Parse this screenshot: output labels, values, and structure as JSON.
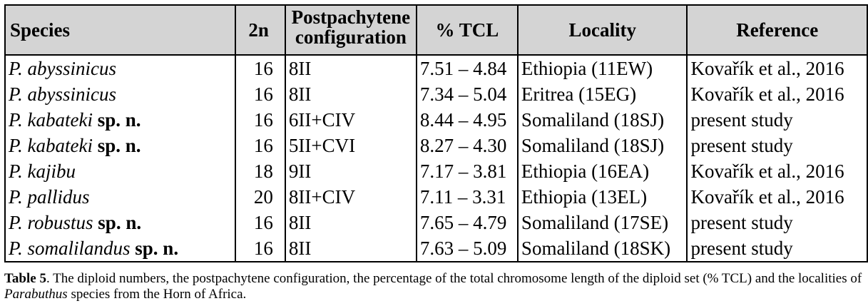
{
  "table": {
    "headers": {
      "species": "Species",
      "two_n": "2n",
      "config_line1": "Postpachytene",
      "config_line2": "configuration",
      "tcl": "% TCL",
      "locality": "Locality",
      "reference": "Reference"
    },
    "rows": [
      {
        "species": "P. abyssinicus",
        "tag": "",
        "two_n": "16",
        "config": "8II",
        "tcl": "7.51 – 4.84",
        "locality": "Ethiopia (11EW)",
        "reference": "Kovařík et al., 2016"
      },
      {
        "species": "P. abyssinicus",
        "tag": "",
        "two_n": "16",
        "config": "8II",
        "tcl": "7.34 – 5.04",
        "locality": "Eritrea (15EG)",
        "reference": "Kovařík et al., 2016"
      },
      {
        "species": "P. kabateki",
        "tag": "sp. n.",
        "two_n": "16",
        "config": "6II+CIV",
        "tcl": "8.44 – 4.95",
        "locality": "Somaliland (18SJ)",
        "reference": "present study"
      },
      {
        "species": "P. kabateki",
        "tag": "sp. n.",
        "two_n": "16",
        "config": "5II+CVI",
        "tcl": "8.27 – 4.30",
        "locality": "Somaliland (18SJ)",
        "reference": "present study"
      },
      {
        "species": "P. kajibu",
        "tag": "",
        "two_n": "18",
        "config": "9II",
        "tcl": "7.17 – 3.81",
        "locality": "Ethiopia (16EA)",
        "reference": "Kovařík et al., 2016"
      },
      {
        "species": "P. pallidus",
        "tag": "",
        "two_n": "20",
        "config": "8II+CIV",
        "tcl": "7.11 – 3.31",
        "locality": "Ethiopia (13EL)",
        "reference": "Kovařík et al., 2016"
      },
      {
        "species": "P. robustus",
        "tag": "sp. n.",
        "two_n": "16",
        "config": "8II",
        "tcl": "7.65 – 4.79",
        "locality": "Somaliland (17SE)",
        "reference": "present study"
      },
      {
        "species": "P. somalilandus",
        "tag": "sp. n.",
        "two_n": "16",
        "config": "8II",
        "tcl": "7.63 – 5.09",
        "locality": "Somaliland (18SK)",
        "reference": "present study"
      }
    ]
  },
  "caption": {
    "label": "Table 5",
    "text_part1": ". The diploid numbers, the postpachytene configuration, the percentage of the total chromosome length of the diploid set (% TCL) and the localities of ",
    "genus": "Parabuthus",
    "text_part2": " species from  the Horn of Africa."
  }
}
